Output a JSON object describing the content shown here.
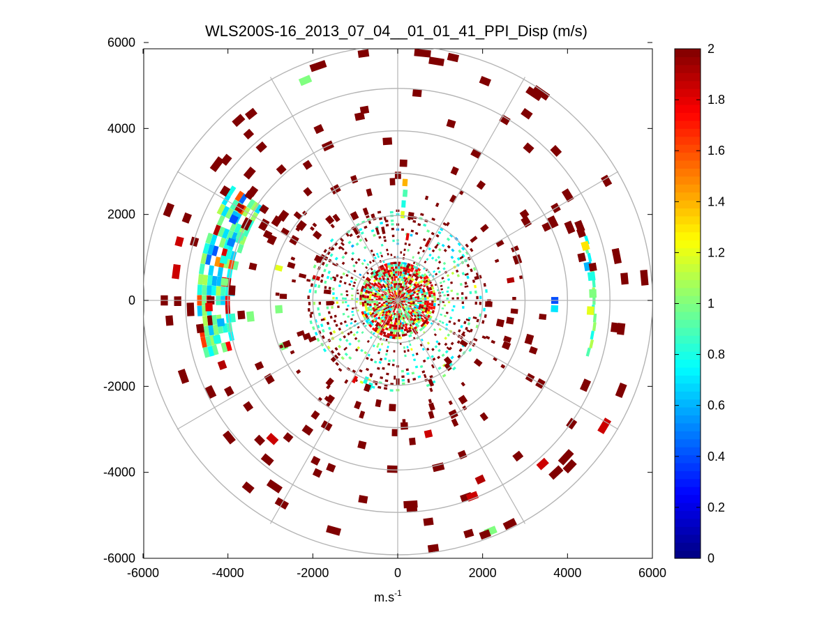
{
  "chart_data": {
    "type": "heatmap",
    "subtype": "polar-ppi",
    "title": "WLS200S-16_2013_07_04__01_01_41_PPI_Disp (m/s)",
    "xlabel_base": "m.s",
    "xlabel_sup": "-1",
    "ylabel": "",
    "xlim": [
      -6000,
      6000
    ],
    "ylim": [
      -6000,
      6000
    ],
    "xticks": [
      -6000,
      -4000,
      -2000,
      0,
      2000,
      4000,
      6000
    ],
    "yticks": [
      6000,
      4000,
      2000,
      0,
      -2000,
      -4000,
      -6000
    ],
    "xtick_labels": [
      "-6000",
      "-4000",
      "-2000",
      "0",
      "2000",
      "4000",
      "6000"
    ],
    "ytick_labels": [
      "6000",
      "4000",
      "2000",
      "0",
      "-2000",
      "-4000",
      "-6000"
    ],
    "range_rings": [
      1000,
      2000,
      3000,
      4000,
      5000,
      6000
    ],
    "azimuth_spokes_deg": [
      0,
      30,
      60,
      90,
      120,
      150,
      180,
      210,
      240,
      270,
      300,
      330
    ],
    "colorbar": {
      "min": 0,
      "max": 2,
      "ticks": [
        0,
        0.2,
        0.4,
        0.6,
        0.8,
        1,
        1.2,
        1.4,
        1.6,
        1.8,
        2
      ],
      "tick_labels": [
        "0",
        "0.2",
        "0.4",
        "0.6",
        "0.8",
        "1",
        "1.2",
        "1.4",
        "1.6",
        "1.8",
        "2"
      ],
      "colormap": "jet"
    },
    "cells": [
      [
        1.2,
        2000,
        3.3
      ],
      [
        0.8,
        2250,
        3.5
      ],
      [
        0.9,
        2500,
        4.0
      ],
      [
        1.4,
        2750,
        3.6
      ],
      [
        1.8,
        1500,
        8.8
      ],
      [
        2.0,
        5800,
        13
      ],
      [
        2.0,
        5500,
        22
      ],
      [
        2.0,
        4900,
        31
      ],
      [
        2.0,
        5300,
        35
      ],
      [
        2.0,
        4700,
        41
      ],
      [
        2.0,
        5100,
        47
      ],
      [
        1.9,
        1500,
        28
      ],
      [
        2.0,
        4300,
        17
      ],
      [
        2.0,
        3300,
        24
      ],
      [
        2.0,
        2700,
        29
      ],
      [
        2.0,
        3600,
        56
      ],
      [
        2.0,
        3900,
        64
      ],
      [
        1.9,
        2700,
        80
      ],
      [
        0.4,
        3700,
        90
      ],
      [
        0.7,
        3700,
        93
      ],
      [
        2.0,
        4450,
        77
      ],
      [
        2.0,
        4600,
        70
      ],
      [
        2.0,
        5150,
        97
      ],
      [
        0.6,
        4550,
        80
      ],
      [
        0.8,
        4600,
        83
      ],
      [
        1.0,
        4600,
        88
      ],
      [
        1.2,
        4550,
        93
      ],
      [
        1.3,
        4600,
        74
      ],
      [
        2.0,
        4300,
        60
      ],
      [
        2.0,
        3400,
        110
      ],
      [
        2.0,
        3600,
        120
      ],
      [
        2.0,
        5000,
        125
      ],
      [
        2.0,
        4600,
        142
      ],
      [
        1.9,
        4600,
        155
      ],
      [
        2.0,
        3900,
        157
      ],
      [
        2.0,
        2600,
        162
      ],
      [
        2.0,
        5200,
        172
      ],
      [
        2.0,
        3300,
        174
      ],
      [
        2.0,
        1900,
        180
      ],
      [
        2.0,
        4700,
        190
      ],
      [
        2.0,
        4200,
        202
      ],
      [
        1.8,
        2100,
        209
      ],
      [
        0.8,
        2000,
        202
      ],
      [
        0.8,
        2100,
        198
      ],
      [
        2.0,
        3300,
        216
      ],
      [
        2.0,
        4100,
        219
      ],
      [
        2.0,
        4600,
        225
      ],
      [
        2.0,
        5600,
        219
      ],
      [
        2.0,
        4500,
        242
      ],
      [
        2.0,
        4300,
        235
      ],
      [
        2.0,
        3600,
        245
      ],
      [
        2.0,
        5400,
        265
      ],
      [
        2.0,
        4700,
        262
      ],
      [
        1.9,
        4400,
        250
      ],
      [
        2.0,
        5500,
        270
      ],
      [
        2.0,
        4400,
        270
      ],
      [
        1.8,
        4450,
        268
      ],
      [
        0.6,
        4200,
        263
      ],
      [
        0.8,
        4350,
        258
      ],
      [
        1.0,
        4100,
        276
      ],
      [
        0.8,
        4200,
        283
      ],
      [
        0.5,
        4150,
        289
      ],
      [
        0.9,
        4000,
        292
      ],
      [
        0.4,
        4300,
        296
      ],
      [
        1.9,
        4300,
        300
      ],
      [
        2.0,
        4800,
        302
      ],
      [
        2.0,
        5200,
        309
      ],
      [
        2.0,
        4800,
        318
      ],
      [
        2.0,
        4100,
        318
      ],
      [
        2.0,
        3300,
        320
      ],
      [
        2.0,
        3800,
        326
      ],
      [
        2.0,
        4400,
        335
      ],
      [
        2.0,
        3000,
        340
      ],
      [
        2.0,
        4500,
        350
      ],
      [
        2.0,
        5800,
        352
      ],
      [
        2.0,
        2000,
        300
      ],
      [
        2.0,
        2400,
        323
      ],
      [
        2.0,
        3800,
        304
      ],
      [
        1.2,
        2900,
        285
      ],
      [
        2.0,
        3100,
        301
      ],
      [
        2.0,
        3500,
        283
      ],
      [
        2.0,
        2700,
        272
      ],
      [
        2.0,
        2200,
        340
      ],
      [
        2.0,
        2600,
        345
      ]
    ]
  }
}
